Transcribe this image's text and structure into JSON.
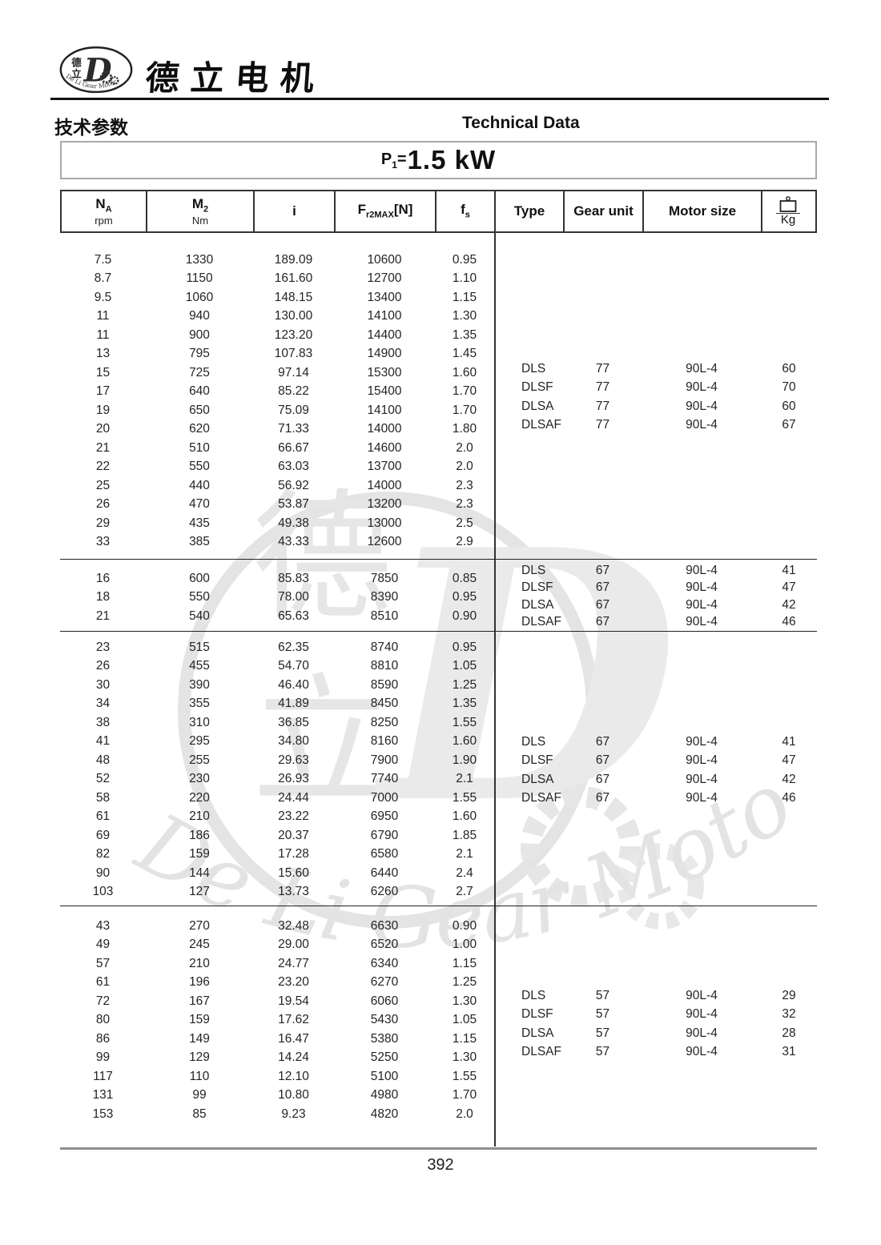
{
  "brand": {
    "logo_char_top": "德",
    "logo_char_bottom": "立",
    "logo_letter": "D",
    "logo_subtext": "De Li Gear Motor",
    "name": "德立电机"
  },
  "titles": {
    "zh": "技术参数",
    "en": "Technical Data"
  },
  "power": {
    "symbol": "P",
    "symbol_sub": "1",
    "eq": "=",
    "value": "1.5 kW"
  },
  "table": {
    "headers": {
      "na_main": "N",
      "na_sub": "A",
      "na_unit": "rpm",
      "m2_main": "M",
      "m2_sub": "2",
      "m2_unit": "Nm",
      "ratio": "i",
      "fr_main": "F",
      "fr_sub": "r2MAX",
      "fr_post": "[N]",
      "fs_main": "f",
      "fs_sub": "s",
      "type": "Type",
      "gear_unit": "Gear unit",
      "motor_size": "Motor size",
      "kg": "Kg"
    },
    "sections": [
      {
        "rows": [
          [
            "7.5",
            "1330",
            "189.09",
            "10600",
            "0.95"
          ],
          [
            "8.7",
            "1150",
            "161.60",
            "12700",
            "1.10"
          ],
          [
            "9.5",
            "1060",
            "148.15",
            "13400",
            "1.15"
          ],
          [
            "11",
            "940",
            "130.00",
            "14100",
            "1.30"
          ],
          [
            "11",
            "900",
            "123.20",
            "14400",
            "1.35"
          ],
          [
            "13",
            "795",
            "107.83",
            "14900",
            "1.45"
          ],
          [
            "15",
            "725",
            "97.14",
            "15300",
            "1.60"
          ],
          [
            "17",
            "640",
            "85.22",
            "15400",
            "1.70"
          ],
          [
            "19",
            "650",
            "75.09",
            "14100",
            "1.70"
          ],
          [
            "20",
            "620",
            "71.33",
            "14000",
            "1.80"
          ],
          [
            "21",
            "510",
            "66.67",
            "14600",
            "2.0"
          ],
          [
            "22",
            "550",
            "63.03",
            "13700",
            "2.0"
          ],
          [
            "25",
            "440",
            "56.92",
            "14000",
            "2.3"
          ],
          [
            "26",
            "470",
            "53.87",
            "13200",
            "2.3"
          ],
          [
            "29",
            "435",
            "49.38",
            "13000",
            "2.5"
          ],
          [
            "33",
            "385",
            "43.33",
            "12600",
            "2.9"
          ]
        ],
        "types": [
          [
            "DLS",
            "77",
            "90L-4",
            "60"
          ],
          [
            "DLSF",
            "77",
            "90L-4",
            "70"
          ],
          [
            "DLSA",
            "77",
            "90L-4",
            "60"
          ],
          [
            "DLSAF",
            "77",
            "90L-4",
            "67"
          ]
        ]
      },
      {
        "rows": [
          [
            "16",
            "600",
            "85.83",
            "7850",
            "0.85"
          ],
          [
            "18",
            "550",
            "78.00",
            "8390",
            "0.95"
          ],
          [
            "21",
            "540",
            "65.63",
            "8510",
            "0.90"
          ]
        ],
        "types": [
          [
            "DLS",
            "67",
            "90L-4",
            "41"
          ],
          [
            "DLSF",
            "67",
            "90L-4",
            "47"
          ],
          [
            "DLSA",
            "67",
            "90L-4",
            "42"
          ],
          [
            "DLSAF",
            "67",
            "90L-4",
            "46"
          ]
        ]
      },
      {
        "rows": [
          [
            "23",
            "515",
            "62.35",
            "8740",
            "0.95"
          ],
          [
            "26",
            "455",
            "54.70",
            "8810",
            "1.05"
          ],
          [
            "30",
            "390",
            "46.40",
            "8590",
            "1.25"
          ],
          [
            "34",
            "355",
            "41.89",
            "8450",
            "1.35"
          ],
          [
            "38",
            "310",
            "36.85",
            "8250",
            "1.55"
          ],
          [
            "41",
            "295",
            "34.80",
            "8160",
            "1.60"
          ],
          [
            "48",
            "255",
            "29.63",
            "7900",
            "1.90"
          ],
          [
            "52",
            "230",
            "26.93",
            "7740",
            "2.1"
          ],
          [
            "58",
            "220",
            "24.44",
            "7000",
            "1.55"
          ],
          [
            "61",
            "210",
            "23.22",
            "6950",
            "1.60"
          ],
          [
            "69",
            "186",
            "20.37",
            "6790",
            "1.85"
          ],
          [
            "82",
            "159",
            "17.28",
            "6580",
            "2.1"
          ],
          [
            "90",
            "144",
            "15.60",
            "6440",
            "2.4"
          ],
          [
            "103",
            "127",
            "13.73",
            "6260",
            "2.7"
          ]
        ],
        "types": [
          [
            "DLS",
            "67",
            "90L-4",
            "41"
          ],
          [
            "DLSF",
            "67",
            "90L-4",
            "47"
          ],
          [
            "DLSA",
            "67",
            "90L-4",
            "42"
          ],
          [
            "DLSAF",
            "67",
            "90L-4",
            "46"
          ]
        ]
      },
      {
        "rows": [
          [
            "43",
            "270",
            "32.48",
            "6630",
            "0.90"
          ],
          [
            "49",
            "245",
            "29.00",
            "6520",
            "1.00"
          ],
          [
            "57",
            "210",
            "24.77",
            "6340",
            "1.15"
          ],
          [
            "61",
            "196",
            "23.20",
            "6270",
            "1.25"
          ],
          [
            "72",
            "167",
            "19.54",
            "6060",
            "1.30"
          ],
          [
            "80",
            "159",
            "17.62",
            "5430",
            "1.05"
          ],
          [
            "86",
            "149",
            "16.47",
            "5380",
            "1.15"
          ],
          [
            "99",
            "129",
            "14.24",
            "5250",
            "1.30"
          ],
          [
            "117",
            "110",
            "12.10",
            "5100",
            "1.55"
          ],
          [
            "131",
            "99",
            "10.80",
            "4980",
            "1.70"
          ],
          [
            "153",
            "85",
            "9.23",
            "4820",
            "2.0"
          ]
        ],
        "types": [
          [
            "DLS",
            "57",
            "90L-4",
            "29"
          ],
          [
            "DLSF",
            "57",
            "90L-4",
            "32"
          ],
          [
            "DLSA",
            "57",
            "90L-4",
            "28"
          ],
          [
            "DLSAF",
            "57",
            "90L-4",
            "31"
          ]
        ]
      }
    ]
  },
  "watermark": {
    "char_top": "德",
    "char_bottom": "立",
    "letter": "D",
    "text": "De Li Gear Motor"
  },
  "footer": {
    "page": "392"
  }
}
